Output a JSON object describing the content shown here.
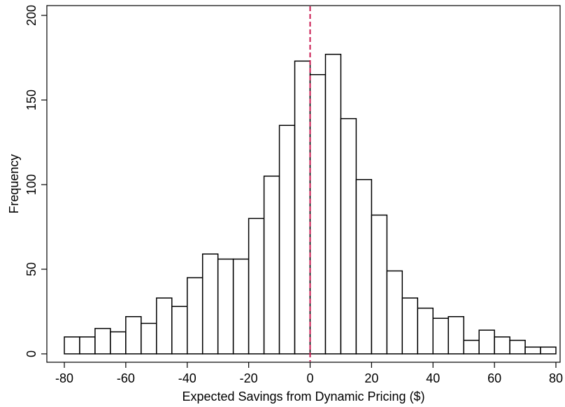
{
  "chart_data": {
    "type": "bar",
    "subtype": "histogram",
    "title": "",
    "xlabel": "Expected Savings from Dynamic Pricing ($)",
    "ylabel": "Frequency",
    "xlim": [
      -82,
      82
    ],
    "ylim": [
      0,
      200
    ],
    "xticks": [
      -80,
      -60,
      -40,
      -20,
      0,
      20,
      40,
      60,
      80
    ],
    "yticks": [
      0,
      50,
      100,
      150,
      200
    ],
    "bin_width": 5,
    "bin_starts": [
      -80,
      -75,
      -70,
      -65,
      -60,
      -55,
      -50,
      -45,
      -40,
      -35,
      -30,
      -25,
      -20,
      -15,
      -10,
      -5,
      0,
      5,
      10,
      15,
      20,
      25,
      30,
      35,
      40,
      45,
      50,
      55,
      60,
      65,
      70,
      75
    ],
    "values": [
      10,
      10,
      15,
      13,
      22,
      18,
      33,
      28,
      45,
      59,
      56,
      56,
      80,
      105,
      135,
      173,
      165,
      177,
      139,
      103,
      82,
      49,
      33,
      27,
      21,
      22,
      8,
      14,
      10,
      8,
      4,
      4
    ],
    "reference_line": {
      "x": 0,
      "style": "dashed",
      "color": "#c8174f"
    },
    "grid": false,
    "colors": {
      "bar_fill": "#ffffff",
      "bar_stroke": "#000000"
    }
  }
}
